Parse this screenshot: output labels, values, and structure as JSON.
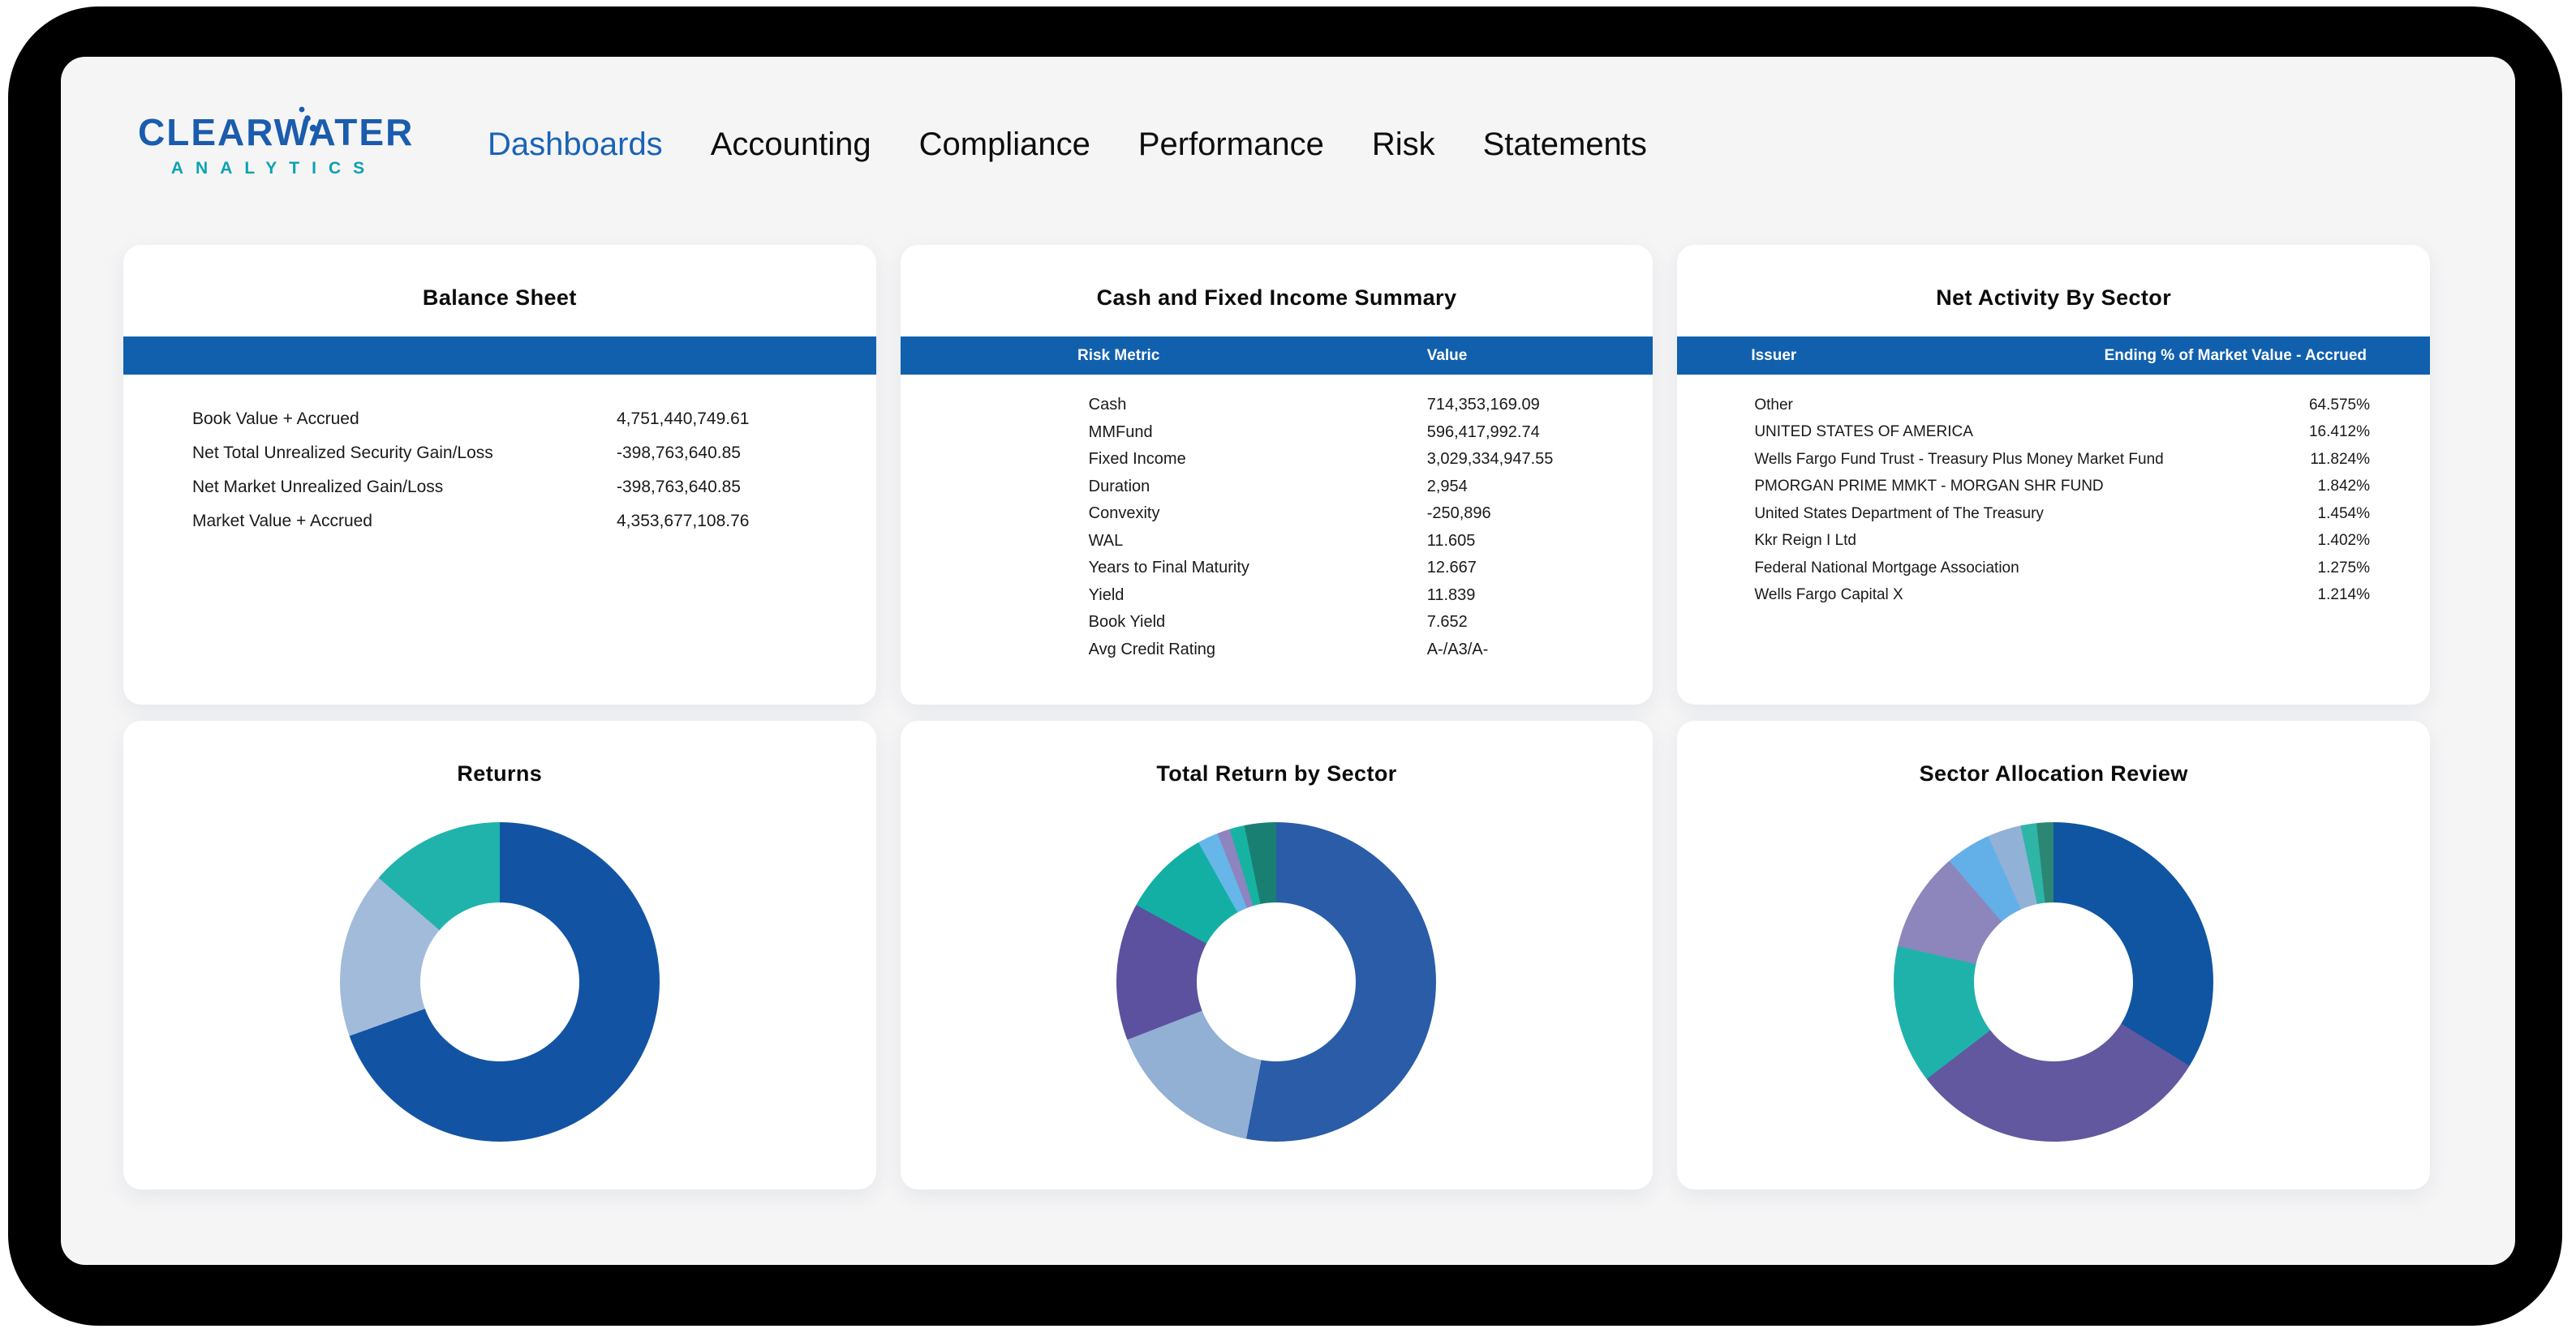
{
  "brand": {
    "name": "CLEARWATER",
    "sub": "ANALYTICS"
  },
  "nav": {
    "items": [
      {
        "label": "Dashboards",
        "active": true
      },
      {
        "label": "Accounting",
        "active": false
      },
      {
        "label": "Compliance",
        "active": false
      },
      {
        "label": "Performance",
        "active": false
      },
      {
        "label": "Risk",
        "active": false
      },
      {
        "label": "Statements",
        "active": false
      }
    ]
  },
  "colors": {
    "header_bar": "#1060ae",
    "nav_active": "#1a63b6",
    "brand_blue": "#1a5cad",
    "brand_teal": "#0aa2b2",
    "panel_bg": "#f5f5f6"
  },
  "cards": {
    "balance_sheet": {
      "title": "Balance Sheet",
      "rows": [
        {
          "label": "Book Value + Accrued",
          "value": "4,751,440,749.61"
        },
        {
          "label": "Net Total Unrealized Security Gain/Loss",
          "value": "-398,763,640.85"
        },
        {
          "label": "Net Market Unrealized Gain/Loss",
          "value": "-398,763,640.85"
        },
        {
          "label": "Market Value + Accrued",
          "value": "4,353,677,108.76"
        }
      ]
    },
    "cash_summary": {
      "title": "Cash and Fixed Income Summary",
      "columns": [
        "Risk Metric",
        "Value"
      ],
      "rows": [
        {
          "label": "Cash",
          "value": "714,353,169.09"
        },
        {
          "label": "MMFund",
          "value": "596,417,992.74"
        },
        {
          "label": "Fixed Income",
          "value": "3,029,334,947.55"
        },
        {
          "label": "Duration",
          "value": "2,954"
        },
        {
          "label": "Convexity",
          "value": "-250,896"
        },
        {
          "label": "WAL",
          "value": "11.605"
        },
        {
          "label": "Years to Final Maturity",
          "value": "12.667"
        },
        {
          "label": "Yield",
          "value": "11.839"
        },
        {
          "label": "Book Yield",
          "value": "7.652"
        },
        {
          "label": "Avg Credit Rating",
          "value": "A-/A3/A-"
        }
      ]
    },
    "net_activity": {
      "title": "Net Activity By Sector",
      "columns": [
        "Issuer",
        "Ending % of Market Value - Accrued"
      ],
      "rows": [
        {
          "label": "Other",
          "value": "64.575%"
        },
        {
          "label": "UNITED STATES OF AMERICA",
          "value": "16.412%"
        },
        {
          "label": "Wells Fargo Fund Trust - Treasury Plus Money Market Fund",
          "value": "11.824%"
        },
        {
          "label": "PMORGAN PRIME MMKT - MORGAN SHR FUND",
          "value": "1.842%"
        },
        {
          "label": "United States Department of The Treasury",
          "value": "1.454%"
        },
        {
          "label": "Kkr Reign I Ltd",
          "value": "1.402%"
        },
        {
          "label": "Federal National Mortgage Association",
          "value": "1.275%"
        },
        {
          "label": "Wells Fargo Capital X",
          "value": "1.214%"
        }
      ]
    }
  },
  "chart_data": [
    {
      "type": "pie",
      "title": "Returns",
      "subtype": "donut",
      "legend": "none",
      "segments": [
        {
          "color": "#1254a3",
          "percent": 69.5
        },
        {
          "color": "#a2bbdb",
          "percent": 16.8
        },
        {
          "color": "#1fb3ab",
          "percent": 13.7
        }
      ]
    },
    {
      "type": "pie",
      "title": "Total Return by Sector",
      "subtype": "donut",
      "legend": "none",
      "segments": [
        {
          "color": "#2a5ca8",
          "percent": 53.0
        },
        {
          "color": "#92afd4",
          "percent": 16.1
        },
        {
          "color": "#5b519f",
          "percent": 13.9
        },
        {
          "color": "#13afa5",
          "percent": 8.9
        },
        {
          "color": "#66b6e9",
          "percent": 2.1
        },
        {
          "color": "#8d84c0",
          "percent": 1.3
        },
        {
          "color": "#16b3a2",
          "percent": 1.5
        },
        {
          "color": "#1a7f73",
          "percent": 3.2
        }
      ]
    },
    {
      "type": "pie",
      "title": "Sector Allocation Review",
      "subtype": "donut",
      "legend": "none",
      "segments": [
        {
          "color": "#0f55a2",
          "percent": 33.8
        },
        {
          "color": "#62589f",
          "percent": 30.8
        },
        {
          "color": "#1fb2ab",
          "percent": 14.0
        },
        {
          "color": "#8c86bd",
          "percent": 10.1
        },
        {
          "color": "#63b0e8",
          "percent": 4.6
        },
        {
          "color": "#92b1d6",
          "percent": 3.4
        },
        {
          "color": "#2eb5a5",
          "percent": 1.6
        },
        {
          "color": "#2b8674",
          "percent": 1.7
        }
      ]
    }
  ]
}
